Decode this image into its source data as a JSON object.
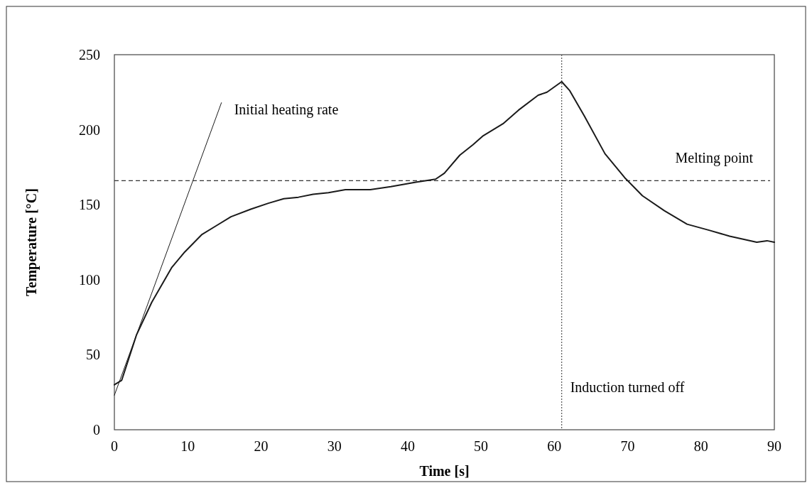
{
  "chart_data": {
    "type": "line",
    "xlabel": "Time [s]",
    "ylabel": "Temperature [°C]",
    "xlim": [
      0,
      90
    ],
    "xticks": [
      0,
      10,
      20,
      30,
      40,
      50,
      60,
      70,
      80,
      90
    ],
    "ylim": [
      0,
      250
    ],
    "yticks": [
      0,
      50,
      100,
      150,
      200,
      250
    ],
    "grid": false,
    "marker": "none",
    "series": [
      {
        "color": "#1a1a1a",
        "line_style": "solid",
        "x": [
          0,
          1,
          3,
          5.1,
          7.8,
          9.5,
          11.9,
          13.9,
          15.9,
          18.6,
          21,
          23.1,
          25.1,
          27.1,
          29.2,
          31.5,
          34.9,
          37.7,
          41.1,
          43.8,
          45,
          47.1,
          48.9,
          50.3,
          53,
          55.1,
          57.8,
          59,
          61,
          62.1,
          64.1,
          66.9,
          69.6,
          72,
          75,
          78.1,
          81.1,
          83.9,
          87.6,
          89,
          90
        ],
        "values": [
          30,
          33,
          63,
          85,
          108,
          118,
          130,
          136,
          142,
          147,
          151,
          154,
          155,
          157,
          158,
          160,
          160,
          162,
          165,
          167,
          171,
          183,
          190,
          196,
          204,
          213,
          223,
          225,
          232,
          226,
          209,
          184,
          168,
          156,
          146,
          137,
          133,
          129,
          125,
          126,
          125
        ]
      },
      {
        "type": "line",
        "color": "#1a1a1a",
        "line_style": "solid",
        "x": [
          0,
          14.6
        ],
        "values": [
          23,
          218
        ]
      }
    ],
    "ref_lines": [
      {
        "axis": "y",
        "value": 166,
        "label": "Melting point",
        "color": "#333333",
        "line_style": "dashed"
      },
      {
        "axis": "x",
        "value": 61,
        "label": "Induction turned off",
        "color": "#555555",
        "line_style": "dotted"
      }
    ],
    "annotations": [
      {
        "text": "Initial heating rate",
        "x": 14.6,
        "y": 218
      }
    ]
  }
}
